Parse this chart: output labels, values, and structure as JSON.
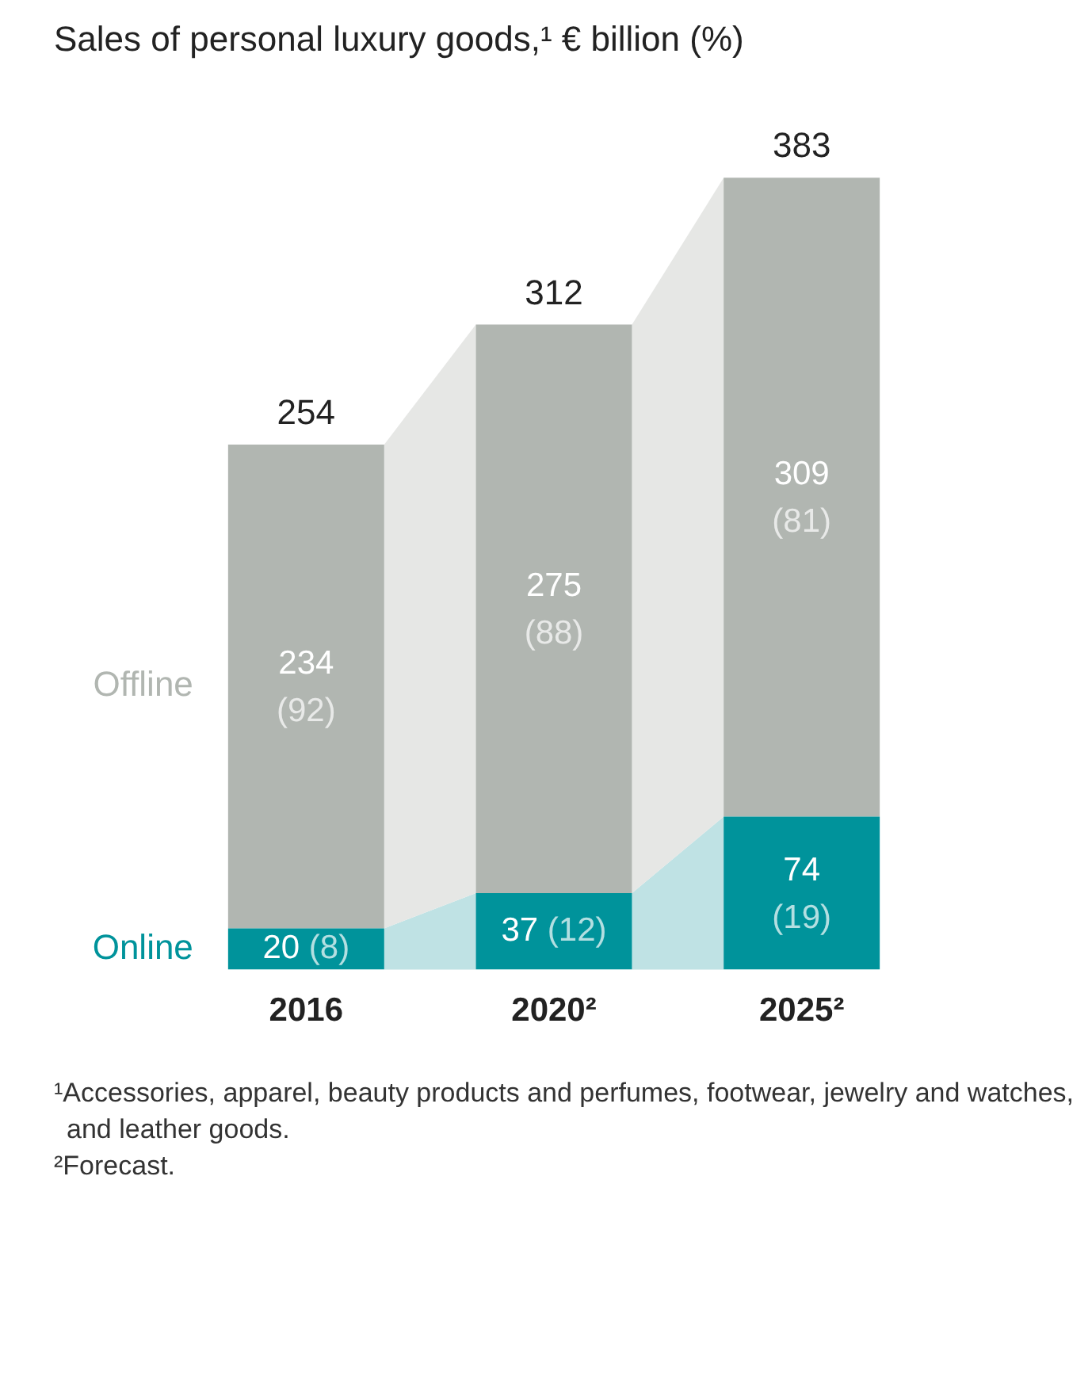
{
  "chart_data": {
    "type": "bar",
    "title": "Sales of personal luxury goods,¹ € billion (%)",
    "categories": [
      "2016",
      "2020²",
      "2025²"
    ],
    "stacked": true,
    "legend": false,
    "grid": false,
    "tick_labels": "x",
    "series": [
      {
        "name": "Online",
        "color": "#00939b",
        "values": [
          20,
          37,
          74
        ],
        "value_labels": [
          "20 (8)",
          "37 (12)",
          "74 (19)"
        ]
      },
      {
        "name": "Offline",
        "color": "#b1b6b1",
        "values": [
          234,
          275,
          309
        ],
        "value_labels": [
          "234 (92)",
          "275 (88)",
          "309 (81)"
        ]
      }
    ],
    "totals": [
      "254",
      "312",
      "383"
    ],
    "annotations": [
      "¹Accessories, apparel, beauty products and perfumes, footwear, jewelry and watches, and leather goods.",
      "²Forecast."
    ]
  }
}
